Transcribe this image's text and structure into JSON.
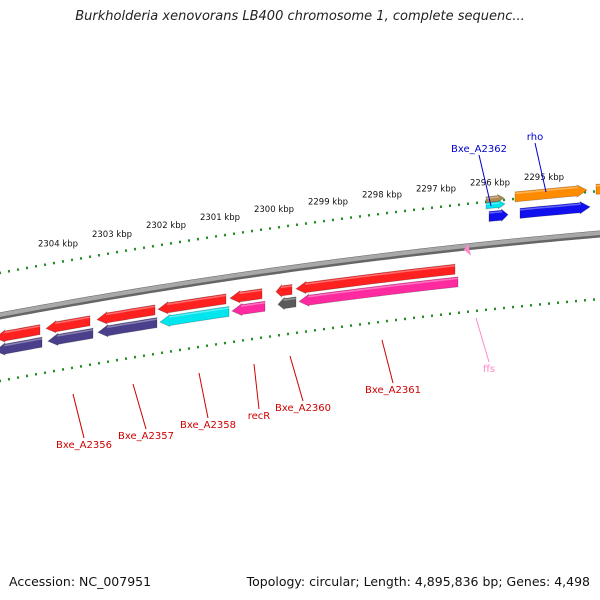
{
  "title": "Burkholderia xenovorans LB400 chromosome 1, complete sequenc...",
  "accession": "Accession: NC_007951",
  "summary": "Topology: circular; Length: 4,895,836 bp; Genes: 4,498",
  "scale": {
    "unit": "kbp",
    "ticks": [
      {
        "kbp": 2295,
        "label": "2295 kbp"
      },
      {
        "kbp": 2296,
        "label": "2296 kbp"
      },
      {
        "kbp": 2297,
        "label": "2297 kbp"
      },
      {
        "kbp": 2298,
        "label": "2298 kbp"
      },
      {
        "kbp": 2299,
        "label": "2299 kbp"
      },
      {
        "kbp": 2300,
        "label": "2300 kbp"
      },
      {
        "kbp": 2301,
        "label": "2301 kbp"
      },
      {
        "kbp": 2302,
        "label": "2302 kbp"
      },
      {
        "kbp": 2303,
        "label": "2303 kbp"
      },
      {
        "kbp": 2304,
        "label": "2304 kbp"
      }
    ]
  },
  "colors": {
    "cds": "#ff2020",
    "cyan": "#00e5ee",
    "magenta": "#ff2aa0",
    "navy": "#4a3f8a",
    "grey": "#5a5a5a",
    "blue": "#1010ee",
    "orange": "#ff8c00",
    "tan": "#b08a50",
    "pink_rna": "#ff88cc",
    "tick_green": "#228b22",
    "backbone": "#8a8a8a",
    "label_red": "#cc0000",
    "label_blue": "#0000cc"
  },
  "genes": [
    {
      "name": "Bxe_A2356",
      "color": "label_red"
    },
    {
      "name": "Bxe_A2357",
      "color": "label_red"
    },
    {
      "name": "Bxe_A2358",
      "color": "label_red"
    },
    {
      "name": "recR",
      "color": "label_red"
    },
    {
      "name": "Bxe_A2360",
      "color": "label_red"
    },
    {
      "name": "Bxe_A2361",
      "color": "label_red"
    },
    {
      "name": "ffs",
      "color": "pink_rna"
    },
    {
      "name": "Bxe_A2362",
      "color": "label_blue"
    },
    {
      "name": "rho",
      "color": "label_blue"
    }
  ]
}
